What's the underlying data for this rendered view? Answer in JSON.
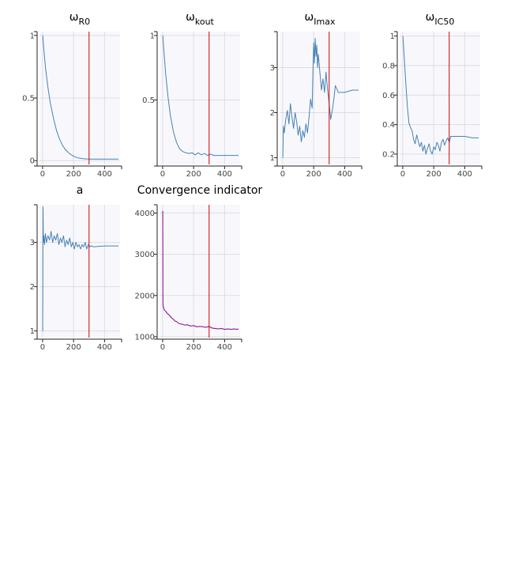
{
  "colors": {
    "series": "#4682b4",
    "convergence": "#8b008b",
    "vline": "#cc0000",
    "panel_bg": "#f8f8fc",
    "grid": "#dcdce6",
    "axis": "#222222"
  },
  "chart_data": [
    {
      "type": "line",
      "title": "ω",
      "title_sub": "R0",
      "ylim": [
        -0.03,
        1.03
      ],
      "xlim": [
        -20,
        500
      ],
      "xticks": [
        0,
        200,
        400
      ],
      "yticks": [
        0,
        0.5,
        1
      ],
      "ytick_labels": [
        "0",
        "0.5",
        "1"
      ],
      "vline": 300,
      "color": "series",
      "x": [
        1,
        10,
        20,
        35,
        50,
        70,
        90,
        110,
        130,
        150,
        175,
        200,
        230,
        260,
        300,
        340,
        400,
        450,
        490
      ],
      "y": [
        1.0,
        0.86,
        0.73,
        0.58,
        0.46,
        0.34,
        0.24,
        0.17,
        0.12,
        0.085,
        0.055,
        0.035,
        0.022,
        0.016,
        0.013,
        0.013,
        0.012,
        0.012,
        0.012
      ]
    },
    {
      "type": "line",
      "title": "ω",
      "title_sub": "kout",
      "ylim": [
        0,
        1.03
      ],
      "xlim": [
        -20,
        500
      ],
      "xticks": [
        0,
        200,
        400
      ],
      "yticks": [
        0.5,
        1
      ],
      "ytick_labels": [
        "0.5",
        "1"
      ],
      "vline": 300,
      "color": "series",
      "x": [
        1,
        10,
        20,
        35,
        50,
        70,
        90,
        110,
        130,
        150,
        170,
        190,
        210,
        230,
        250,
        270,
        290,
        310,
        330,
        360,
        400,
        450,
        490
      ],
      "y": [
        1.0,
        0.85,
        0.7,
        0.52,
        0.38,
        0.25,
        0.17,
        0.12,
        0.1,
        0.09,
        0.085,
        0.09,
        0.075,
        0.09,
        0.075,
        0.085,
        0.07,
        0.08,
        0.07,
        0.07,
        0.07,
        0.07,
        0.07
      ]
    },
    {
      "type": "line",
      "title": "ω",
      "title_sub": "Imax",
      "ylim": [
        0.85,
        3.8
      ],
      "xlim": [
        -20,
        500
      ],
      "xticks": [
        0,
        200,
        400
      ],
      "yticks": [
        1,
        2,
        3
      ],
      "ytick_labels": [
        "1",
        "2",
        "3"
      ],
      "vline": 300,
      "color": "series",
      "x": [
        1,
        5,
        10,
        20,
        30,
        40,
        50,
        60,
        70,
        80,
        90,
        100,
        110,
        120,
        130,
        140,
        150,
        160,
        170,
        180,
        190,
        195,
        200,
        205,
        210,
        215,
        220,
        225,
        230,
        240,
        250,
        260,
        270,
        280,
        290,
        300,
        310,
        320,
        330,
        340,
        360,
        400,
        450,
        490
      ],
      "y": [
        1.0,
        1.7,
        1.55,
        1.85,
        2.05,
        1.75,
        2.2,
        1.9,
        1.65,
        2.0,
        1.8,
        1.5,
        1.7,
        1.35,
        1.6,
        1.45,
        1.75,
        1.55,
        1.9,
        2.3,
        2.1,
        2.9,
        3.55,
        3.1,
        3.65,
        3.25,
        3.5,
        3.0,
        3.3,
        2.9,
        2.5,
        2.75,
        2.45,
        2.9,
        2.5,
        2.2,
        1.85,
        2.05,
        2.3,
        2.6,
        2.45,
        2.45,
        2.5,
        2.5
      ]
    },
    {
      "type": "line",
      "title": "ω",
      "title_sub": "IC50",
      "ylim": [
        0.13,
        1.03
      ],
      "xlim": [
        -20,
        500
      ],
      "xticks": [
        0,
        200,
        400
      ],
      "yticks": [
        0.2,
        0.4,
        0.6,
        0.8,
        1
      ],
      "ytick_labels": [
        "0.2",
        "0.4",
        "0.6",
        "0.8",
        "1"
      ],
      "vline": 300,
      "color": "series",
      "x": [
        1,
        10,
        20,
        30,
        40,
        50,
        60,
        70,
        80,
        90,
        100,
        110,
        120,
        130,
        140,
        150,
        160,
        170,
        180,
        190,
        200,
        210,
        220,
        230,
        240,
        250,
        260,
        270,
        280,
        290,
        300,
        310,
        330,
        360,
        400,
        450,
        490
      ],
      "y": [
        1.0,
        0.85,
        0.68,
        0.52,
        0.41,
        0.38,
        0.36,
        0.3,
        0.27,
        0.33,
        0.29,
        0.25,
        0.28,
        0.22,
        0.26,
        0.2,
        0.24,
        0.27,
        0.22,
        0.2,
        0.25,
        0.23,
        0.28,
        0.26,
        0.22,
        0.28,
        0.3,
        0.26,
        0.29,
        0.31,
        0.28,
        0.32,
        0.32,
        0.32,
        0.32,
        0.31,
        0.31
      ]
    },
    {
      "type": "line",
      "title": "a",
      "title_sub": "",
      "ylim": [
        0.85,
        3.85
      ],
      "xlim": [
        -20,
        500
      ],
      "xticks": [
        0,
        200,
        400
      ],
      "yticks": [
        1,
        2,
        3
      ],
      "ytick_labels": [
        "1",
        "2",
        "3"
      ],
      "vline": 300,
      "color": "series",
      "x": [
        1,
        3,
        5,
        8,
        12,
        18,
        25,
        35,
        45,
        55,
        65,
        75,
        85,
        95,
        105,
        115,
        125,
        135,
        145,
        155,
        165,
        175,
        185,
        195,
        205,
        215,
        225,
        235,
        245,
        255,
        265,
        275,
        285,
        295,
        305,
        315,
        330,
        360,
        400,
        450,
        490
      ],
      "y": [
        1.0,
        3.8,
        3.0,
        3.15,
        2.95,
        3.2,
        3.0,
        3.15,
        3.05,
        3.25,
        3.0,
        3.15,
        3.05,
        3.2,
        2.95,
        3.1,
        3.0,
        3.15,
        2.9,
        3.05,
        2.95,
        3.1,
        2.9,
        3.0,
        2.85,
        3.0,
        2.9,
        2.95,
        2.85,
        2.95,
        2.9,
        3.0,
        2.85,
        2.95,
        2.9,
        2.92,
        2.9,
        2.91,
        2.92,
        2.92,
        2.92
      ]
    },
    {
      "type": "line",
      "title": "Convergence indicator",
      "title_sub": "",
      "ylim": [
        980,
        4200
      ],
      "xlim": [
        -20,
        500
      ],
      "xticks": [
        0,
        200,
        400
      ],
      "yticks": [
        1000,
        2000,
        3000,
        4000
      ],
      "ytick_labels": [
        "1000",
        "2000",
        "3000",
        "4000"
      ],
      "vline": 300,
      "color": "convergence",
      "x": [
        1,
        2,
        5,
        10,
        20,
        30,
        40,
        50,
        60,
        70,
        80,
        90,
        100,
        115,
        130,
        145,
        160,
        180,
        200,
        220,
        240,
        260,
        280,
        300,
        320,
        340,
        360,
        380,
        400,
        420,
        440,
        460,
        480,
        490
      ],
      "y": [
        4050,
        1800,
        1720,
        1650,
        1620,
        1560,
        1540,
        1490,
        1450,
        1420,
        1380,
        1370,
        1330,
        1310,
        1300,
        1280,
        1290,
        1260,
        1270,
        1240,
        1250,
        1240,
        1230,
        1250,
        1210,
        1200,
        1190,
        1200,
        1180,
        1190,
        1180,
        1190,
        1180,
        1190
      ]
    }
  ]
}
